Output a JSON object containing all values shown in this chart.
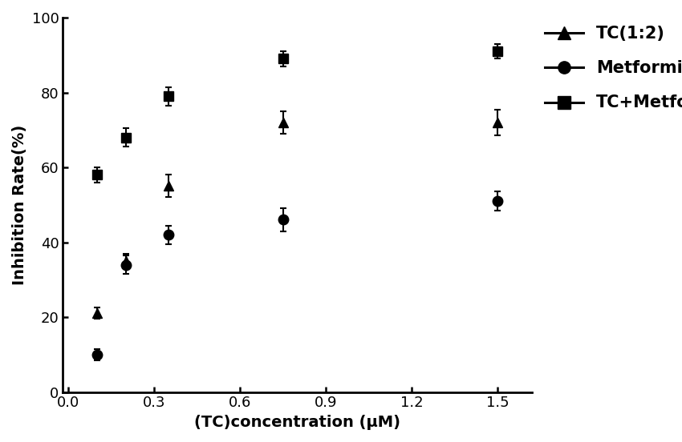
{
  "title": "",
  "xlabel": "(TC)concentration (μM)",
  "ylabel": "Inhibition Rate(%)",
  "xlim": [
    -0.02,
    1.62
  ],
  "ylim": [
    0,
    100
  ],
  "xticks": [
    0.0,
    0.3,
    0.6,
    0.9,
    1.2,
    1.5
  ],
  "yticks": [
    0,
    20,
    40,
    60,
    80,
    100
  ],
  "background_color": "#ffffff",
  "TC_x": [
    0.1,
    0.2,
    0.35,
    0.75,
    1.5
  ],
  "TC_y": [
    21.0,
    35.0,
    55.0,
    72.0,
    72.0
  ],
  "TC_err": [
    1.5,
    2.0,
    3.0,
    3.0,
    3.5
  ],
  "Met_x": [
    0.1,
    0.2,
    0.35,
    0.75,
    1.5
  ],
  "Met_y": [
    10.0,
    34.0,
    42.0,
    46.0,
    51.0
  ],
  "Met_err": [
    1.5,
    2.5,
    2.5,
    3.0,
    2.5
  ],
  "TCMet_x": [
    0.1,
    0.2,
    0.35,
    0.75,
    1.5
  ],
  "TCMet_y": [
    58.0,
    68.0,
    79.0,
    89.0,
    91.0
  ],
  "TCMet_err": [
    2.0,
    2.5,
    2.5,
    2.0,
    2.0
  ],
  "legend_labels": [
    "TC(1:2)",
    "Metformin",
    "TC+Metformin"
  ],
  "line_color": "#000000",
  "font_size": 14,
  "tick_font_size": 13,
  "legend_font_size": 14,
  "ci_band_TC": 7.0,
  "ci_band_Met": 7.0,
  "ci_band_TCMet": 5.0
}
